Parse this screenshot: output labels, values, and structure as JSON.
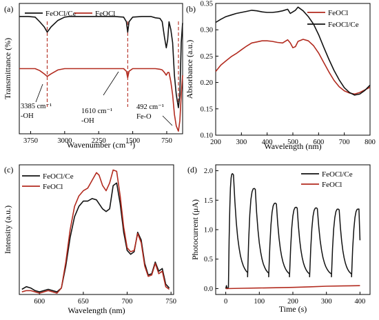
{
  "colors": {
    "FeOCl/Ce": "#111111",
    "FeOCl": "#b22a1e"
  },
  "chart_data": [
    {
      "panel": "(a)",
      "type": "line",
      "xlabel": "Wavenumber (cm⁻¹)",
      "ylabel": "Transmittance (%)",
      "xlim": [
        4000,
        400
      ],
      "x_ticks": [
        "3750",
        "3000",
        "2250",
        "1500",
        "750"
      ],
      "legend": [
        "FeOCl/Ce",
        "FeOCl"
      ],
      "legend_placement": "top",
      "series": [
        {
          "name": "FeOCl/Ce",
          "x": [
            4000,
            3800,
            3650,
            3550,
            3450,
            3385,
            3300,
            3150,
            3000,
            2900,
            2700,
            2500,
            2300,
            2100,
            1900,
            1700,
            1640,
            1610,
            1580,
            1500,
            1300,
            1100,
            1000,
            900,
            850,
            800,
            760,
            730,
            700,
            660,
            620,
            580,
            540,
            492,
            460,
            430,
            400
          ],
          "y": [
            0.9,
            0.9,
            0.895,
            0.86,
            0.82,
            0.78,
            0.82,
            0.87,
            0.895,
            0.9,
            0.9,
            0.9,
            0.9,
            0.9,
            0.9,
            0.895,
            0.86,
            0.78,
            0.86,
            0.895,
            0.9,
            0.9,
            0.89,
            0.885,
            0.86,
            0.74,
            0.66,
            0.72,
            0.86,
            0.8,
            0.7,
            0.45,
            0.3,
            0.2,
            0.3,
            0.7,
            0.85
          ]
        },
        {
          "name": "FeOCl",
          "x": [
            4000,
            3800,
            3650,
            3550,
            3450,
            3385,
            3300,
            3150,
            3000,
            2900,
            2700,
            2500,
            2300,
            2100,
            1900,
            1700,
            1640,
            1610,
            1580,
            1500,
            1300,
            1100,
            1000,
            900,
            850,
            800,
            760,
            730,
            700,
            660,
            620,
            580,
            540,
            492,
            460,
            430,
            400
          ],
          "y": [
            0.5,
            0.5,
            0.5,
            0.485,
            0.46,
            0.44,
            0.46,
            0.49,
            0.5,
            0.5,
            0.5,
            0.5,
            0.5,
            0.5,
            0.5,
            0.5,
            0.48,
            0.43,
            0.48,
            0.5,
            0.5,
            0.5,
            0.5,
            0.495,
            0.49,
            0.47,
            0.45,
            0.47,
            0.47,
            0.4,
            0.3,
            0.15,
            0.06,
            0.02,
            0.1,
            0.3,
            0.45
          ]
        }
      ],
      "markers": [
        3385,
        1610,
        492
      ],
      "annotations": [
        {
          "line1": "3385 cm⁻¹",
          "line2": "-OH"
        },
        {
          "line1": "1610 cm⁻¹",
          "line2": "-OH"
        },
        {
          "line1": "492 cm⁻¹",
          "line2": "Fe-O"
        }
      ]
    },
    {
      "panel": "(b)",
      "type": "line",
      "xlabel": "Wavelength (nm)",
      "ylabel": "Absorbance (a.u.)",
      "xlim": [
        200,
        800
      ],
      "ylim": [
        0.1,
        0.35
      ],
      "x_ticks": [
        "200",
        "300",
        "400",
        "500",
        "600",
        "700",
        "800"
      ],
      "y_ticks": [
        "0.10",
        "0.15",
        "0.20",
        "0.25",
        "0.30",
        "0.35"
      ],
      "legend": [
        "FeOCl",
        "FeOCl/Ce"
      ],
      "legend_placement": "top-right",
      "series": [
        {
          "name": "FeOCl",
          "x": [
            200,
            220,
            240,
            260,
            280,
            300,
            320,
            340,
            360,
            380,
            400,
            420,
            440,
            460,
            480,
            490,
            500,
            510,
            520,
            540,
            560,
            580,
            600,
            620,
            640,
            660,
            680,
            700,
            720,
            740,
            760,
            780,
            800
          ],
          "y": [
            0.221,
            0.233,
            0.241,
            0.249,
            0.255,
            0.262,
            0.269,
            0.275,
            0.277,
            0.279,
            0.279,
            0.278,
            0.276,
            0.275,
            0.281,
            0.275,
            0.266,
            0.268,
            0.278,
            0.282,
            0.279,
            0.27,
            0.256,
            0.238,
            0.22,
            0.204,
            0.192,
            0.184,
            0.18,
            0.178,
            0.181,
            0.186,
            0.191
          ]
        },
        {
          "name": "FeOCl/Ce",
          "x": [
            200,
            220,
            240,
            260,
            280,
            300,
            320,
            340,
            360,
            380,
            400,
            420,
            440,
            460,
            480,
            490,
            500,
            510,
            520,
            540,
            560,
            580,
            600,
            620,
            640,
            660,
            680,
            700,
            720,
            740,
            760,
            780,
            800
          ],
          "y": [
            0.314,
            0.32,
            0.325,
            0.328,
            0.331,
            0.333,
            0.335,
            0.337,
            0.336,
            0.334,
            0.333,
            0.333,
            0.334,
            0.336,
            0.339,
            0.331,
            0.334,
            0.337,
            0.343,
            0.336,
            0.325,
            0.311,
            0.291,
            0.267,
            0.244,
            0.223,
            0.205,
            0.19,
            0.181,
            0.176,
            0.178,
            0.185,
            0.195
          ]
        }
      ]
    },
    {
      "panel": "(c)",
      "type": "line",
      "xlabel": "Wavelength (nm)",
      "ylabel": "Intensity (a.u.)",
      "xlim": [
        577,
        753
      ],
      "x_ticks": [
        "600",
        "650",
        "700",
        "750"
      ],
      "legend": [
        "FeOCl/Ce",
        "FeOCl"
      ],
      "legend_placement": "top-left",
      "series": [
        {
          "name": "FeOCl/Ce",
          "x": [
            580,
            585,
            590,
            595,
            600,
            605,
            610,
            615,
            620,
            625,
            630,
            635,
            640,
            645,
            650,
            655,
            660,
            665,
            668,
            672,
            676,
            680,
            684,
            688,
            692,
            696,
            700,
            704,
            708,
            712,
            716,
            720,
            724,
            728,
            732,
            736,
            740,
            744,
            748
          ],
          "y": [
            0.04,
            0.06,
            0.05,
            0.03,
            0.02,
            0.03,
            0.04,
            0.03,
            0.02,
            0.05,
            0.22,
            0.44,
            0.6,
            0.68,
            0.72,
            0.72,
            0.74,
            0.73,
            0.7,
            0.66,
            0.64,
            0.66,
            0.84,
            0.86,
            0.7,
            0.48,
            0.34,
            0.31,
            0.33,
            0.48,
            0.42,
            0.24,
            0.15,
            0.16,
            0.25,
            0.18,
            0.2,
            0.08,
            0.05
          ]
        },
        {
          "name": "FeOCl",
          "x": [
            580,
            585,
            590,
            595,
            600,
            605,
            610,
            615,
            620,
            625,
            630,
            635,
            640,
            645,
            650,
            655,
            660,
            665,
            668,
            672,
            676,
            680,
            684,
            688,
            692,
            696,
            700,
            704,
            708,
            712,
            716,
            720,
            724,
            728,
            732,
            736,
            740,
            744,
            748
          ],
          "y": [
            0.02,
            0.03,
            0.03,
            0.02,
            0.01,
            0.02,
            0.03,
            0.02,
            0.01,
            0.05,
            0.25,
            0.5,
            0.68,
            0.76,
            0.8,
            0.82,
            0.88,
            0.94,
            0.92,
            0.84,
            0.8,
            0.86,
            0.96,
            0.95,
            0.76,
            0.52,
            0.36,
            0.33,
            0.34,
            0.47,
            0.4,
            0.22,
            0.14,
            0.15,
            0.24,
            0.16,
            0.18,
            0.06,
            0.04
          ]
        }
      ]
    },
    {
      "panel": "(d)",
      "type": "line",
      "xlabel": "Time (s)",
      "ylabel": "Photocurrent (μA)",
      "xlim": [
        -30,
        430
      ],
      "ylim": [
        -0.1,
        2.1
      ],
      "x_ticks": [
        "0",
        "100",
        "200",
        "300",
        "400"
      ],
      "y_ticks": [
        "0.0",
        "0.5",
        "1.0",
        "1.5",
        "2.0"
      ],
      "legend": [
        "FeOCl/Ce",
        "FeOCl"
      ],
      "legend_placement": "top-right",
      "cycles": {
        "on_times": [
          20,
          85,
          148,
          210,
          270,
          335,
          395
        ],
        "peaks": [
          1.95,
          1.7,
          1.45,
          1.38,
          1.37,
          1.35,
          1.35
        ],
        "period": 63
      },
      "series": [
        {
          "name": "FeOCl/Ce",
          "x": [
            0,
            20,
            40,
            85,
            105,
            148,
            168,
            210,
            230,
            270,
            290,
            335,
            355,
            395,
            400
          ],
          "y": [
            0.0,
            1.95,
            0.2,
            1.7,
            0.2,
            1.45,
            0.2,
            1.38,
            0.2,
            1.37,
            0.2,
            1.35,
            0.2,
            1.35,
            0.82
          ]
        },
        {
          "name": "FeOCl",
          "x": [
            0,
            50,
            100,
            150,
            200,
            250,
            300,
            350,
            400
          ],
          "y": [
            0.0,
            0.005,
            0.01,
            0.015,
            0.02,
            0.03,
            0.04,
            0.045,
            0.05
          ]
        }
      ]
    }
  ]
}
